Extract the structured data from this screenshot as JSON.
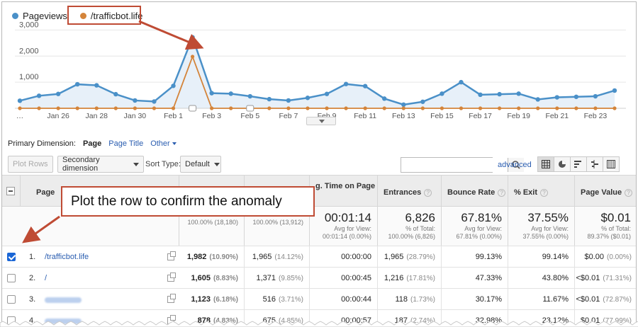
{
  "legend": {
    "items": [
      {
        "label": "Pageviews",
        "color": "#4a90c8"
      },
      {
        "label": "/trafficbot.life",
        "color": "#d4843a"
      }
    ]
  },
  "chart_data": {
    "type": "line",
    "x": [
      "Jan 24",
      "Jan 25",
      "Jan 26",
      "Jan 27",
      "Jan 28",
      "Jan 29",
      "Jan 30",
      "Jan 31",
      "Feb 1",
      "Feb 2",
      "Feb 3",
      "Feb 4",
      "Feb 5",
      "Feb 6",
      "Feb 7",
      "Feb 8",
      "Feb 9",
      "Feb 10",
      "Feb 11",
      "Feb 12",
      "Feb 13",
      "Feb 14",
      "Feb 15",
      "Feb 16",
      "Feb 17",
      "Feb 18",
      "Feb 19",
      "Feb 20",
      "Feb 21",
      "Feb 22",
      "Feb 23",
      "Feb 24"
    ],
    "x_tick_labels": [
      "…",
      "Jan 26",
      "Jan 28",
      "Jan 30",
      "Feb 1",
      "Feb 3",
      "Feb 5",
      "Feb 7",
      "Feb 9",
      "Feb 11",
      "Feb 13",
      "Feb 15",
      "Feb 17",
      "Feb 19",
      "Feb 21",
      "Feb 23"
    ],
    "y_tick_labels": [
      "1,000",
      "2,000",
      "3,000"
    ],
    "ylim": [
      0,
      3200
    ],
    "series": [
      {
        "name": "Pageviews",
        "color": "#4a90c8",
        "values": [
          290,
          480,
          550,
          920,
          880,
          540,
          300,
          260,
          860,
          2720,
          580,
          560,
          460,
          350,
          300,
          400,
          550,
          930,
          850,
          370,
          140,
          250,
          560,
          1000,
          520,
          540,
          560,
          340,
          420,
          440,
          460,
          680
        ]
      },
      {
        "name": "/trafficbot.life",
        "color": "#d4843a",
        "values": [
          0,
          0,
          0,
          0,
          0,
          0,
          0,
          0,
          0,
          1982,
          0,
          0,
          0,
          0,
          0,
          0,
          0,
          0,
          0,
          0,
          0,
          0,
          0,
          0,
          0,
          0,
          0,
          0,
          0,
          0,
          0,
          0
        ]
      }
    ]
  },
  "primary_dimension": {
    "label": "Primary Dimension:",
    "active": "Page",
    "option2": "Page Title",
    "other": "Other"
  },
  "toolbar": {
    "plot_rows": "Plot Rows",
    "secondary_dimension": "Secondary dimension",
    "sort_type_label": "Sort Type:",
    "sort_type_value": "Default",
    "search_value": "",
    "advanced": "advanced"
  },
  "table": {
    "headers": [
      "Page",
      "",
      "",
      "g. Time on Page",
      "Entrances",
      "Bounce Rate",
      "% Exit",
      "Page Value"
    ],
    "totals": [
      {
        "big": "",
        "l1": "% of Total:",
        "l2": "100.00% (18,180)"
      },
      {
        "big": "",
        "l1": "% of Total:",
        "l2": "100.00% (13,912)"
      },
      {
        "big": "00:01:14",
        "l1": "Avg for View:",
        "l2": "00:01:14 (0.00%)"
      },
      {
        "big": "6,826",
        "l1": "% of Total:",
        "l2": "100.00% (6,826)"
      },
      {
        "big": "67.81%",
        "l1": "Avg for View:",
        "l2": "67.81% (0.00%)"
      },
      {
        "big": "37.55%",
        "l1": "Avg for View:",
        "l2": "37.55% (0.00%)"
      },
      {
        "big": "$0.01",
        "l1": "% of Total:",
        "l2": "89.37% ($0.01)"
      }
    ],
    "rows": [
      {
        "checked": true,
        "num": "1.",
        "page": "/trafficbot.life",
        "pv": "1,982",
        "pv_pct": "(10.90%)",
        "upv": "1,965",
        "upv_pct": "(14.12%)",
        "time": "00:00:00",
        "ent": "1,965",
        "ent_pct": "(28.79%)",
        "bounce": "99.13%",
        "exit": "99.14%",
        "value": "$0.00",
        "value_pct": "(0.00%)"
      },
      {
        "checked": false,
        "num": "2.",
        "page": "/",
        "pv": "1,605",
        "pv_pct": "(8.83%)",
        "upv": "1,371",
        "upv_pct": "(9.85%)",
        "time": "00:00:45",
        "ent": "1,216",
        "ent_pct": "(17.81%)",
        "bounce": "47.33%",
        "exit": "43.80%",
        "value": "<$0.01",
        "value_pct": "(71.31%)"
      },
      {
        "checked": false,
        "num": "3.",
        "page": "",
        "pv": "1,123",
        "pv_pct": "(6.18%)",
        "upv": "516",
        "upv_pct": "(3.71%)",
        "time": "00:00:44",
        "ent": "118",
        "ent_pct": "(1.73%)",
        "bounce": "30.17%",
        "exit": "11.67%",
        "value": "<$0.01",
        "value_pct": "(72.87%)"
      },
      {
        "checked": false,
        "num": "4.",
        "page": "",
        "pv": "878",
        "pv_pct": "(4.83%)",
        "upv": "675",
        "upv_pct": "(4.85%)",
        "time": "00:00:57",
        "ent": "187",
        "ent_pct": "(2.74%)",
        "bounce": "32.98%",
        "exit": "23.12%",
        "value": "$0.01",
        "value_pct": "(77.99%)"
      }
    ]
  },
  "annotation": {
    "text": "Plot the row to confirm the anomaly",
    "color": "#bf4b34"
  }
}
